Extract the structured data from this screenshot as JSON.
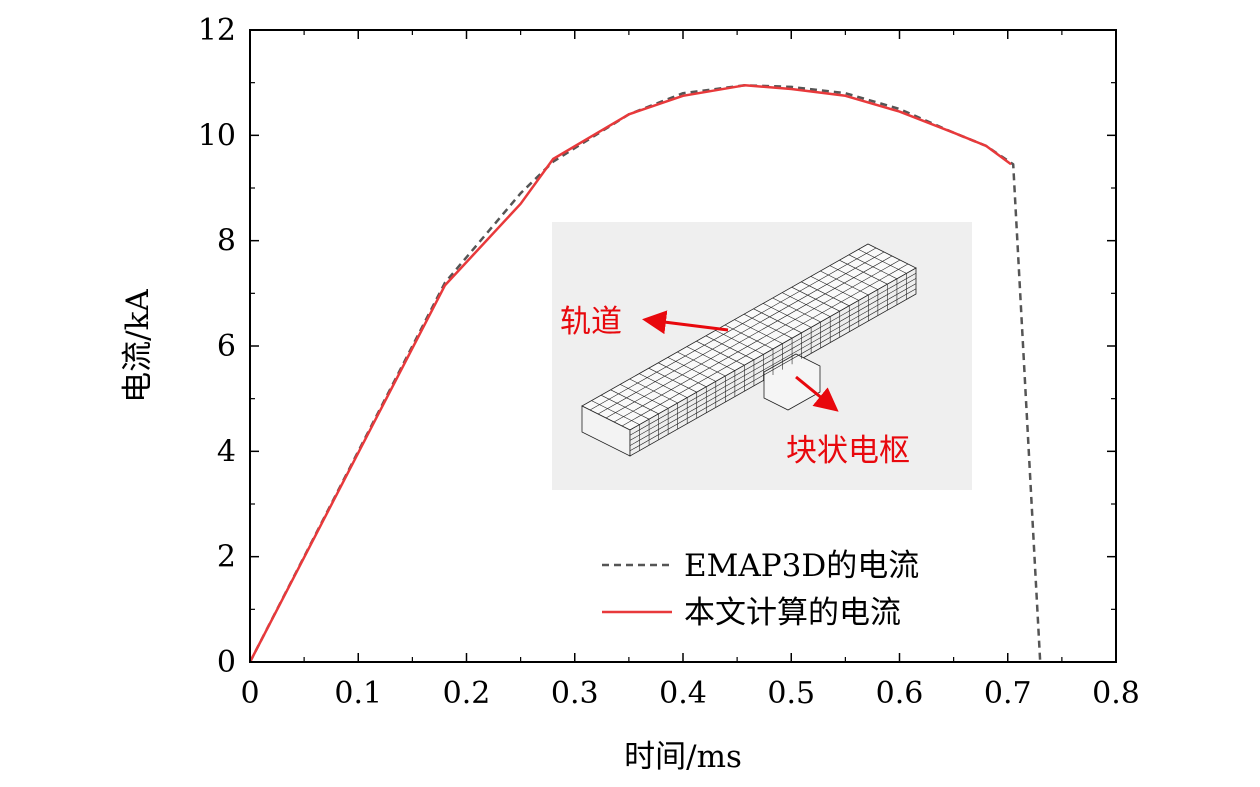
{
  "chart_data": {
    "type": "line",
    "title": "",
    "xlabel": "时间/ms",
    "ylabel": "电流/kA",
    "xlim": [
      0,
      0.8
    ],
    "ylim": [
      0,
      12
    ],
    "x_ticks": [
      0,
      0.1,
      0.2,
      0.3,
      0.4,
      0.5,
      0.6,
      0.7,
      0.8
    ],
    "x_tick_labels": [
      "0",
      "0.1",
      "0.2",
      "0.3",
      "0.4",
      "0.5",
      "0.6",
      "0.7",
      "0.8"
    ],
    "y_ticks": [
      0,
      2,
      4,
      6,
      8,
      10,
      12
    ],
    "y_tick_labels": [
      "0",
      "2",
      "4",
      "6",
      "8",
      "10",
      "12"
    ],
    "legend_position": "bottom-right",
    "series": [
      {
        "name": "EMAP3D的电流",
        "color": "#555555",
        "style": "dashed",
        "x": [
          0,
          0.18,
          0.25,
          0.28,
          0.35,
          0.4,
          0.457,
          0.5,
          0.55,
          0.6,
          0.65,
          0.68,
          0.705,
          0.73
        ],
        "y": [
          0,
          7.2,
          8.9,
          9.5,
          10.4,
          10.8,
          10.95,
          10.92,
          10.8,
          10.5,
          10.05,
          9.8,
          9.45,
          0
        ]
      },
      {
        "name": "本文计算的电流",
        "color": "#e8393b",
        "style": "solid",
        "x": [
          0,
          0.18,
          0.25,
          0.28,
          0.35,
          0.4,
          0.457,
          0.5,
          0.55,
          0.6,
          0.65,
          0.68,
          0.703
        ],
        "y": [
          0,
          7.15,
          8.7,
          9.55,
          10.4,
          10.75,
          10.95,
          10.88,
          10.75,
          10.45,
          10.05,
          9.8,
          9.45
        ]
      }
    ],
    "inset": {
      "description_labels": [
        "轨道",
        "块状电枢"
      ],
      "label_color": "#e8080d",
      "background": "#efefef"
    }
  }
}
